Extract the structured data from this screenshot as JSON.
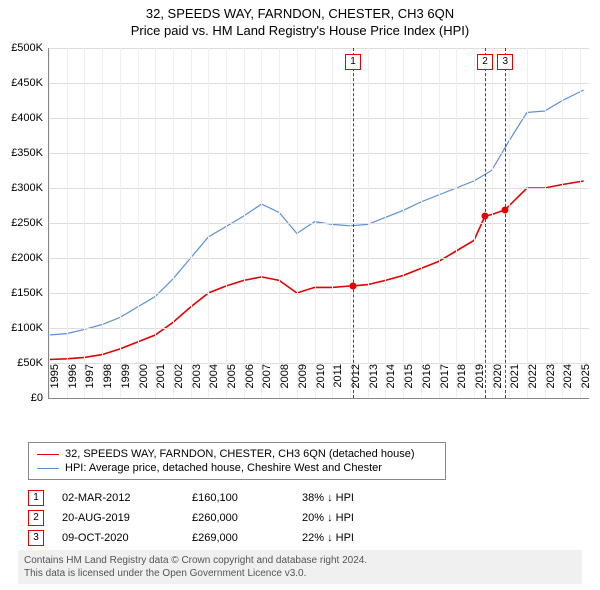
{
  "title": "32, SPEEDS WAY, FARNDON, CHESTER, CH3 6QN",
  "subtitle": "Price paid vs. HM Land Registry's House Price Index (HPI)",
  "chart": {
    "type": "line",
    "background_color": "#ffffff",
    "grid_color": "#dddddd",
    "label_fontsize": 11,
    "ylim": [
      0,
      500000
    ],
    "ytick_step": 50000,
    "yticks": [
      "£0",
      "£50K",
      "£100K",
      "£150K",
      "£200K",
      "£250K",
      "£300K",
      "£350K",
      "£400K",
      "£450K",
      "£500K"
    ],
    "xlim": [
      1995,
      2025.5
    ],
    "xticks": [
      1995,
      1996,
      1997,
      1998,
      1999,
      2000,
      2001,
      2002,
      2003,
      2004,
      2005,
      2006,
      2007,
      2008,
      2009,
      2010,
      2011,
      2012,
      2013,
      2014,
      2015,
      2016,
      2017,
      2018,
      2019,
      2020,
      2021,
      2022,
      2023,
      2024,
      2025
    ],
    "series": [
      {
        "name": "price_paid",
        "label": "32, SPEEDS WAY, FARNDON, CHESTER, CH3 6QN (detached house)",
        "color": "#e60000",
        "line_width": 1.6,
        "x": [
          1995,
          1996,
          1997,
          1998,
          1999,
          2000,
          2001,
          2002,
          2003,
          2004,
          2005,
          2006,
          2007,
          2008,
          2009,
          2010,
          2011,
          2012,
          2012.17,
          2013,
          2014,
          2015,
          2016,
          2017,
          2018,
          2019,
          2019.63,
          2020,
          2020.77,
          2021,
          2022,
          2023,
          2024,
          2025.2
        ],
        "y": [
          55000,
          56000,
          58000,
          62000,
          70000,
          80000,
          90000,
          108000,
          130000,
          150000,
          160000,
          168000,
          173000,
          168000,
          150000,
          158000,
          158000,
          160000,
          160100,
          162000,
          168000,
          175000,
          185000,
          195000,
          210000,
          225000,
          260000,
          262000,
          269000,
          275000,
          300000,
          300000,
          305000,
          310000
        ]
      },
      {
        "name": "hpi",
        "label": "HPI: Average price, detached house, Cheshire West and Chester",
        "color": "#5b8fd6",
        "line_width": 1.2,
        "x": [
          1995,
          1996,
          1997,
          1998,
          1999,
          2000,
          2001,
          2002,
          2003,
          2004,
          2005,
          2006,
          2007,
          2008,
          2009,
          2010,
          2011,
          2012,
          2013,
          2014,
          2015,
          2016,
          2017,
          2018,
          2019,
          2020,
          2021,
          2022,
          2023,
          2024,
          2025.2
        ],
        "y": [
          90000,
          92000,
          98000,
          105000,
          115000,
          130000,
          145000,
          170000,
          200000,
          230000,
          245000,
          260000,
          277000,
          265000,
          235000,
          252000,
          248000,
          246000,
          248000,
          258000,
          268000,
          280000,
          290000,
          300000,
          310000,
          325000,
          368000,
          408000,
          410000,
          425000,
          440000
        ]
      }
    ],
    "sale_markers": [
      {
        "n": "1",
        "x": 2012.17,
        "y": 160100
      },
      {
        "n": "2",
        "x": 2019.63,
        "y": 260000
      },
      {
        "n": "3",
        "x": 2020.77,
        "y": 269000
      }
    ]
  },
  "legend": {
    "items": [
      {
        "color": "#e60000",
        "width": 1.6,
        "label": "32, SPEEDS WAY, FARNDON, CHESTER, CH3 6QN (detached house)"
      },
      {
        "color": "#5b8fd6",
        "width": 1.2,
        "label": "HPI: Average price, detached house, Cheshire West and Chester"
      }
    ]
  },
  "sales": [
    {
      "n": "1",
      "date": "02-MAR-2012",
      "price": "£160,100",
      "pct": "38% ↓ HPI"
    },
    {
      "n": "2",
      "date": "20-AUG-2019",
      "price": "£260,000",
      "pct": "20% ↓ HPI"
    },
    {
      "n": "3",
      "date": "09-OCT-2020",
      "price": "£269,000",
      "pct": "22% ↓ HPI"
    }
  ],
  "footer": {
    "line1": "Contains HM Land Registry data © Crown copyright and database right 2024.",
    "line2": "This data is licensed under the Open Government Licence v3.0."
  }
}
